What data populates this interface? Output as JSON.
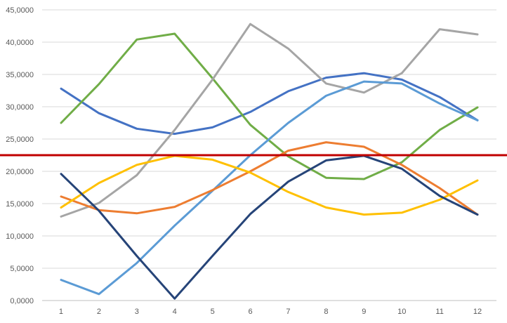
{
  "chart_data": {
    "type": "line",
    "categories": [
      "1",
      "2",
      "3",
      "4",
      "5",
      "6",
      "7",
      "8",
      "9",
      "10",
      "11",
      "12"
    ],
    "y_ticks": [
      "0,0000",
      "5,0000",
      "10,0000",
      "15,0000",
      "20,0000",
      "25,0000",
      "30,0000",
      "35,0000",
      "40,0000",
      "45,0000"
    ],
    "ylim": [
      0,
      45
    ],
    "grid": true,
    "reference_line": {
      "value": 22.5,
      "color": "#c00000"
    },
    "series": [
      {
        "color": "#4472c4",
        "values": [
          32.8,
          29.0,
          26.6,
          25.8,
          26.8,
          29.2,
          32.4,
          34.5,
          35.2,
          34.2,
          31.5,
          27.9
        ]
      },
      {
        "color": "#70ad47",
        "values": [
          27.5,
          33.5,
          40.4,
          41.3,
          34.4,
          27.2,
          22.3,
          19.0,
          18.8,
          21.4,
          26.4,
          29.9
        ]
      },
      {
        "color": "#a5a5a5",
        "values": [
          13.0,
          15.1,
          19.4,
          26.4,
          34.2,
          42.8,
          39.0,
          33.6,
          32.2,
          35.2,
          42.0,
          41.2
        ]
      },
      {
        "color": "#5b9bd5",
        "values": [
          3.2,
          1.0,
          5.8,
          11.6,
          17.0,
          22.5,
          27.5,
          31.7,
          33.9,
          33.6,
          30.5,
          27.9
        ]
      },
      {
        "color": "#ed7d31",
        "values": [
          16.1,
          14.0,
          13.5,
          14.5,
          17.1,
          20.0,
          23.2,
          24.5,
          23.8,
          21.0,
          17.4,
          13.3
        ]
      },
      {
        "color": "#ffc000",
        "values": [
          14.4,
          18.2,
          21.0,
          22.4,
          21.8,
          19.8,
          16.8,
          14.4,
          13.3,
          13.6,
          15.6,
          18.6
        ]
      },
      {
        "color": "#264478",
        "values": [
          19.6,
          13.9,
          6.9,
          0.3,
          6.9,
          13.4,
          18.4,
          21.7,
          22.4,
          20.4,
          16.2,
          13.3
        ]
      }
    ]
  }
}
